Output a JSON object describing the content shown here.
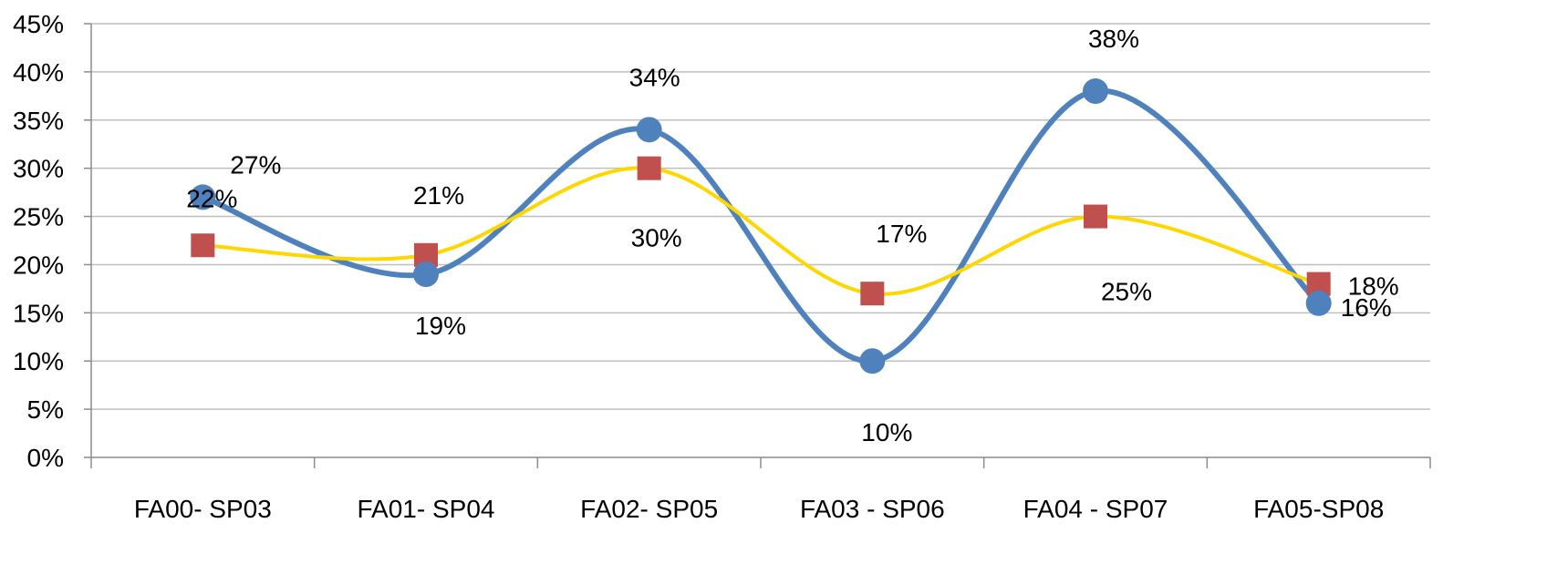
{
  "chart_data": {
    "type": "line",
    "categories": [
      "FA00- SP03",
      "FA01- SP04",
      "FA02- SP05",
      "FA03 - SP06",
      "FA04 - SP07",
      "FA05-SP08"
    ],
    "y_tick_labels": [
      "0%",
      "5%",
      "10%",
      "15%",
      "20%",
      "25%",
      "30%",
      "35%",
      "40%",
      "45%"
    ],
    "ylim": [
      0,
      45
    ],
    "y_unit": "%",
    "grid": true,
    "legend": "none",
    "smooth": true,
    "series": [
      {
        "values": [
          27,
          19,
          34,
          10,
          38,
          16
        ],
        "labels": [
          "27%",
          "19%",
          "34%",
          "10%",
          "38%",
          "16%"
        ],
        "color": "#4F81BD",
        "marker": "circle"
      },
      {
        "values": [
          22,
          21,
          30,
          17,
          25,
          18
        ],
        "labels": [
          "22%",
          "21%",
          "30%",
          "17%",
          "25%",
          "18%"
        ],
        "color": "#FFD700",
        "marker_color": "#C0504D",
        "marker": "square"
      }
    ]
  }
}
